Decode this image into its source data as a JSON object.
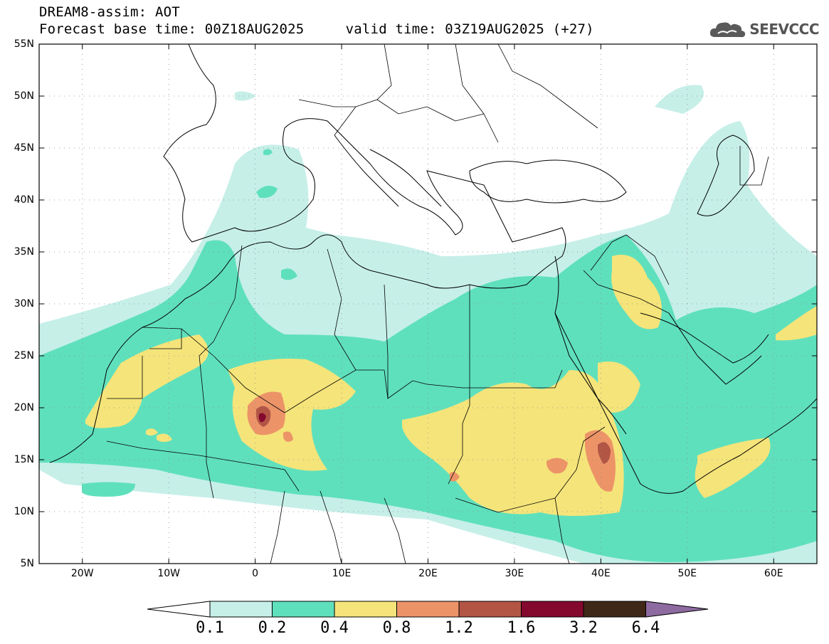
{
  "header": {
    "title_line1": "DREAM8-assim: AOT",
    "title_line2": "Forecast base time: 00Z18AUG2025     valid time: 03Z19AUG2025 (+27)",
    "logo_text": "SEEVCCC",
    "logo_icon": "cloud-icon"
  },
  "map": {
    "lat_labels": [
      "55N",
      "50N",
      "45N",
      "40N",
      "35N",
      "30N",
      "25N",
      "20N",
      "15N",
      "10N",
      "5N"
    ],
    "lon_labels": [
      "20W",
      "10W",
      "0",
      "10E",
      "20E",
      "30E",
      "40E",
      "50E",
      "60E"
    ],
    "lat_range": [
      5,
      55
    ],
    "lon_range": [
      -25,
      65
    ],
    "grid": "dotted"
  },
  "colorbar": {
    "labels": [
      "0.1",
      "0.2",
      "0.4",
      "0.8",
      "1.2",
      "1.6",
      "3.2",
      "6.4"
    ],
    "colors": [
      "#c6efe8",
      "#5fe0bd",
      "#f5e47a",
      "#ec9468",
      "#b35545",
      "#84092e",
      "#3f2817",
      "#8d6aa0"
    ],
    "under_color": "#ffffff"
  }
}
